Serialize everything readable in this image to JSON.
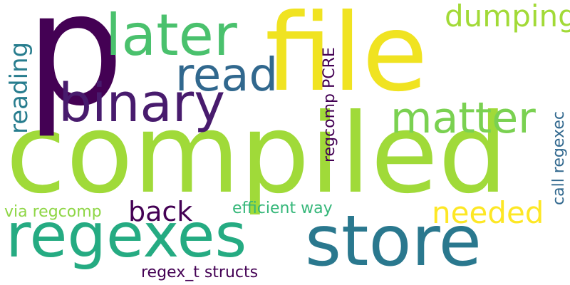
{
  "words": {
    "compiled": {
      "text": "compiled",
      "color": "#a0da39"
    },
    "file": {
      "text": "file",
      "color": "#f0e321"
    },
    "p": {
      "text": "p",
      "color": "#440154"
    },
    "store": {
      "text": "store",
      "color": "#2a788e"
    },
    "regexes": {
      "text": "regexes",
      "color": "#25ab82"
    },
    "binary": {
      "text": "binary",
      "color": "#481b6d"
    },
    "later": {
      "text": "later",
      "color": "#4ac16d"
    },
    "read": {
      "text": "read",
      "color": "#31688e"
    },
    "matter": {
      "text": "matter",
      "color": "#7ad151"
    },
    "dumping": {
      "text": "dumping",
      "color": "#a2da37"
    },
    "needed": {
      "text": "needed",
      "color": "#fde725"
    },
    "back": {
      "text": "back",
      "color": "#440154"
    },
    "efficient": {
      "text": "efficient way",
      "color": "#35b779"
    },
    "via": {
      "text": "via regcomp",
      "color": "#8ed645"
    },
    "regexstr": {
      "text": "regex_t structs",
      "color": "#440154"
    },
    "reading": {
      "text": "reading",
      "color": "#287d8e"
    },
    "regcomp": {
      "text": "regcomp PCRE",
      "color": "#440154"
    },
    "callreg": {
      "text": "call regexec",
      "color": "#31688e"
    }
  }
}
